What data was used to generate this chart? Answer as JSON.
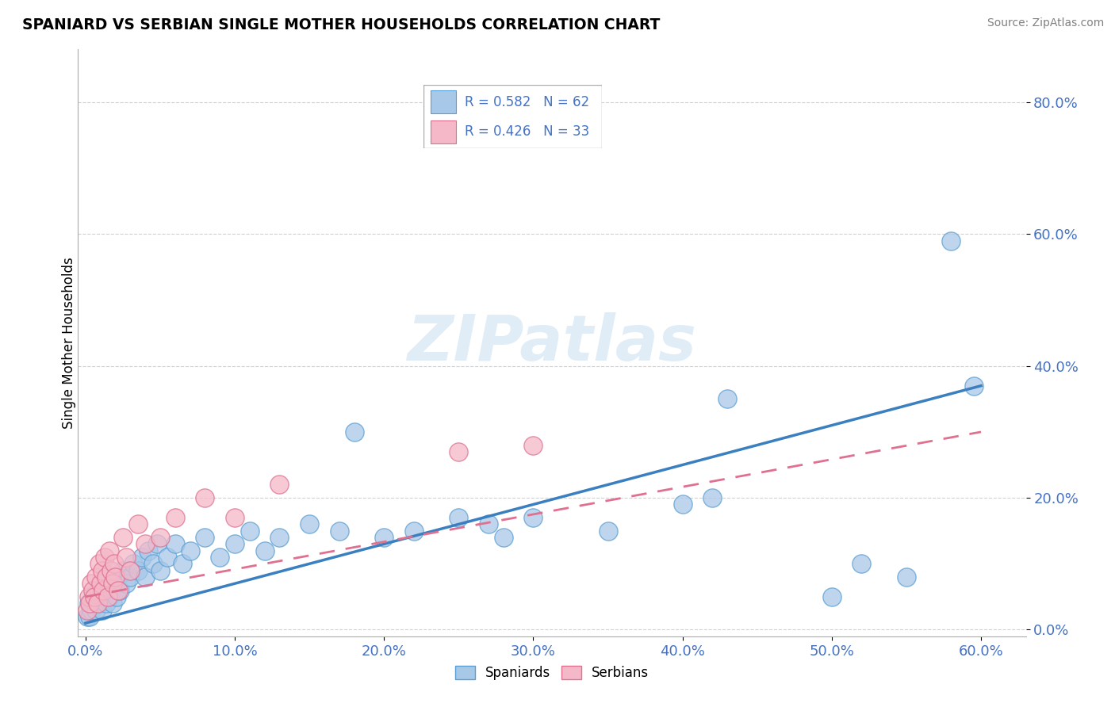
{
  "title": "SPANIARD VS SERBIAN SINGLE MOTHER HOUSEHOLDS CORRELATION CHART",
  "source": "Source: ZipAtlas.com",
  "xlim": [
    -0.005,
    0.63
  ],
  "ylim": [
    -0.01,
    0.88
  ],
  "ylabel": "Single Mother Households",
  "legend_label1": "Spaniards",
  "legend_label2": "Serbians",
  "r1": 0.582,
  "n1": 62,
  "r2": 0.426,
  "n2": 33,
  "color_blue_fill": "#a8c8e8",
  "color_blue_edge": "#5a9fd4",
  "color_pink_fill": "#f4b8c8",
  "color_pink_edge": "#e07090",
  "color_blue_line": "#3a7fbf",
  "color_pink_line": "#e07090",
  "color_text_blue": "#4472C4",
  "color_grid": "#cccccc",
  "color_axis": "#aaaaaa",
  "watermark": "ZIPatlas",
  "blue_points": [
    [
      0.001,
      0.02
    ],
    [
      0.002,
      0.04
    ],
    [
      0.003,
      0.02
    ],
    [
      0.004,
      0.03
    ],
    [
      0.005,
      0.05
    ],
    [
      0.006,
      0.04
    ],
    [
      0.007,
      0.03
    ],
    [
      0.008,
      0.06
    ],
    [
      0.009,
      0.04
    ],
    [
      0.01,
      0.05
    ],
    [
      0.011,
      0.03
    ],
    [
      0.012,
      0.06
    ],
    [
      0.013,
      0.05
    ],
    [
      0.014,
      0.04
    ],
    [
      0.015,
      0.07
    ],
    [
      0.016,
      0.05
    ],
    [
      0.017,
      0.06
    ],
    [
      0.018,
      0.04
    ],
    [
      0.019,
      0.07
    ],
    [
      0.02,
      0.06
    ],
    [
      0.021,
      0.05
    ],
    [
      0.022,
      0.08
    ],
    [
      0.023,
      0.06
    ],
    [
      0.025,
      0.09
    ],
    [
      0.027,
      0.07
    ],
    [
      0.03,
      0.08
    ],
    [
      0.032,
      0.1
    ],
    [
      0.035,
      0.09
    ],
    [
      0.038,
      0.11
    ],
    [
      0.04,
      0.08
    ],
    [
      0.042,
      0.12
    ],
    [
      0.045,
      0.1
    ],
    [
      0.048,
      0.13
    ],
    [
      0.05,
      0.09
    ],
    [
      0.055,
      0.11
    ],
    [
      0.06,
      0.13
    ],
    [
      0.065,
      0.1
    ],
    [
      0.07,
      0.12
    ],
    [
      0.08,
      0.14
    ],
    [
      0.09,
      0.11
    ],
    [
      0.1,
      0.13
    ],
    [
      0.11,
      0.15
    ],
    [
      0.12,
      0.12
    ],
    [
      0.13,
      0.14
    ],
    [
      0.15,
      0.16
    ],
    [
      0.17,
      0.15
    ],
    [
      0.18,
      0.3
    ],
    [
      0.2,
      0.14
    ],
    [
      0.22,
      0.15
    ],
    [
      0.25,
      0.17
    ],
    [
      0.27,
      0.16
    ],
    [
      0.28,
      0.14
    ],
    [
      0.3,
      0.17
    ],
    [
      0.35,
      0.15
    ],
    [
      0.4,
      0.19
    ],
    [
      0.43,
      0.35
    ],
    [
      0.5,
      0.05
    ],
    [
      0.52,
      0.1
    ],
    [
      0.55,
      0.08
    ],
    [
      0.58,
      0.59
    ],
    [
      0.595,
      0.37
    ],
    [
      0.42,
      0.2
    ]
  ],
  "pink_points": [
    [
      0.001,
      0.03
    ],
    [
      0.002,
      0.05
    ],
    [
      0.003,
      0.04
    ],
    [
      0.004,
      0.07
    ],
    [
      0.005,
      0.06
    ],
    [
      0.006,
      0.05
    ],
    [
      0.007,
      0.08
    ],
    [
      0.008,
      0.04
    ],
    [
      0.009,
      0.1
    ],
    [
      0.01,
      0.07
    ],
    [
      0.011,
      0.09
    ],
    [
      0.012,
      0.06
    ],
    [
      0.013,
      0.11
    ],
    [
      0.014,
      0.08
    ],
    [
      0.015,
      0.05
    ],
    [
      0.016,
      0.12
    ],
    [
      0.017,
      0.09
    ],
    [
      0.018,
      0.07
    ],
    [
      0.019,
      0.1
    ],
    [
      0.02,
      0.08
    ],
    [
      0.022,
      0.06
    ],
    [
      0.025,
      0.14
    ],
    [
      0.027,
      0.11
    ],
    [
      0.03,
      0.09
    ],
    [
      0.035,
      0.16
    ],
    [
      0.04,
      0.13
    ],
    [
      0.05,
      0.14
    ],
    [
      0.06,
      0.17
    ],
    [
      0.08,
      0.2
    ],
    [
      0.1,
      0.17
    ],
    [
      0.13,
      0.22
    ],
    [
      0.25,
      0.27
    ],
    [
      0.3,
      0.28
    ]
  ],
  "blue_line_x": [
    0.0,
    0.6
  ],
  "blue_line_y": [
    0.01,
    0.37
  ],
  "pink_line_x": [
    0.0,
    0.6
  ],
  "pink_line_y": [
    0.05,
    0.3
  ]
}
